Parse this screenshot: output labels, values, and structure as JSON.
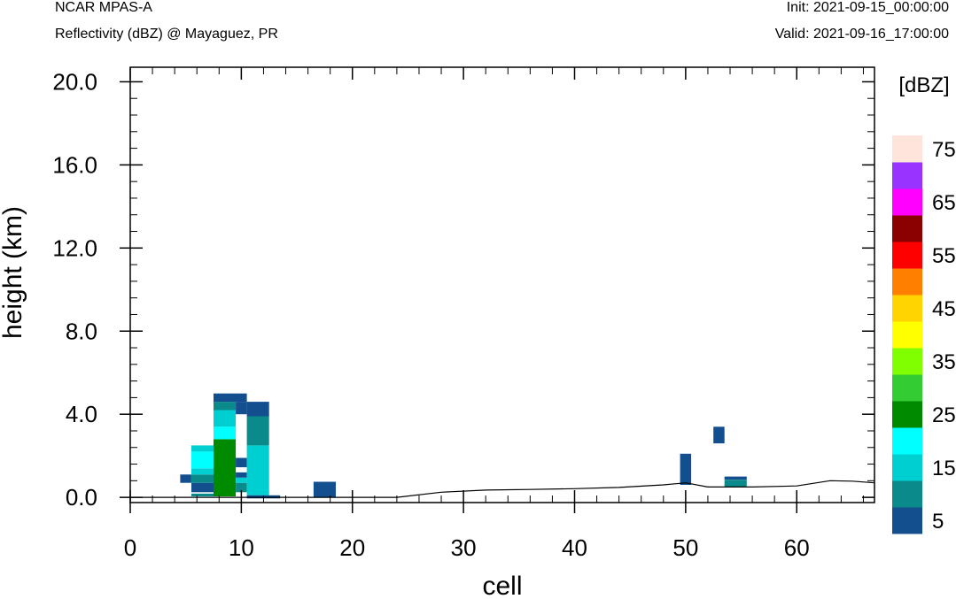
{
  "header": {
    "model": "NCAR MPAS-A",
    "subtitle": "Reflectivity (dBZ) @ Mayaguez, PR",
    "init": "Init: 2021-09-15_00:00:00",
    "valid": "Valid: 2021-09-16_17:00:00"
  },
  "chart_data": {
    "type": "heatmap",
    "xlabel": "cell",
    "ylabel": "height (km)",
    "xlim": [
      0,
      67
    ],
    "ylim": [
      -0.25,
      20.7
    ],
    "xticks": [
      0,
      10,
      20,
      30,
      40,
      50,
      60
    ],
    "xtick_labels": [
      "0",
      "10",
      "20",
      "30",
      "40",
      "50",
      "60"
    ],
    "yticks": [
      0,
      4,
      8,
      12,
      16,
      20
    ],
    "ytick_labels": [
      "0.0",
      "4.0",
      "8.0",
      "12.0",
      "16.0",
      "20.0"
    ],
    "colorbar": {
      "title": "[dBZ]",
      "levels": [
        5,
        10,
        15,
        20,
        25,
        30,
        35,
        40,
        45,
        50,
        55,
        60,
        65,
        70,
        75
      ],
      "labels": [
        "5",
        "15",
        "25",
        "35",
        "45",
        "55",
        "65",
        "75"
      ],
      "colors": [
        "#134f8f",
        "#0a8a8a",
        "#00cfd1",
        "#00ffff",
        "#008a00",
        "#33cc33",
        "#80ff00",
        "#ffff00",
        "#ffd400",
        "#ff8000",
        "#ff0000",
        "#8b0000",
        "#ff00ff",
        "#9933ff",
        "#ffe4dc"
      ]
    },
    "cells": [
      {
        "x": [
          4.5,
          5.5
        ],
        "y": [
          0.7,
          1.1
        ],
        "dbz": 5
      },
      {
        "x": [
          5.5,
          7.5
        ],
        "y": [
          0.25,
          0.7
        ],
        "dbz": 5
      },
      {
        "x": [
          5.5,
          7.5
        ],
        "y": [
          0.7,
          1.1
        ],
        "dbz": 10
      },
      {
        "x": [
          5.5,
          7.5
        ],
        "y": [
          1.1,
          1.4
        ],
        "dbz": 15
      },
      {
        "x": [
          5.5,
          7.5
        ],
        "y": [
          1.4,
          2.2
        ],
        "dbz": 20
      },
      {
        "x": [
          5.5,
          7.5
        ],
        "y": [
          2.2,
          2.5
        ],
        "dbz": 15
      },
      {
        "x": [
          5.5,
          7.5
        ],
        "y": [
          0.05,
          0.18
        ],
        "dbz": 10
      },
      {
        "x": [
          7.5,
          9.5
        ],
        "y": [
          0.05,
          2.8
        ],
        "dbz": 25
      },
      {
        "x": [
          7.5,
          9.5
        ],
        "y": [
          2.8,
          3.4
        ],
        "dbz": 20
      },
      {
        "x": [
          7.5,
          9.5
        ],
        "y": [
          3.4,
          4.2
        ],
        "dbz": 15
      },
      {
        "x": [
          7.5,
          9.5
        ],
        "y": [
          4.2,
          4.6
        ],
        "dbz": 10
      },
      {
        "x": [
          7.5,
          10.5
        ],
        "y": [
          4.6,
          5.0
        ],
        "dbz": 5
      },
      {
        "x": [
          9.5,
          10.5
        ],
        "y": [
          0.25,
          0.7
        ],
        "dbz": 10
      },
      {
        "x": [
          9.5,
          10.5
        ],
        "y": [
          0.7,
          0.95
        ],
        "dbz": 15
      },
      {
        "x": [
          9.5,
          10.5
        ],
        "y": [
          0.95,
          1.2
        ],
        "dbz": 5
      },
      {
        "x": [
          9.5,
          10.5
        ],
        "y": [
          1.45,
          1.9
        ],
        "dbz": 5
      },
      {
        "x": [
          9.5,
          10.5
        ],
        "y": [
          4.0,
          4.6
        ],
        "dbz": 5
      },
      {
        "x": [
          10.5,
          12.5
        ],
        "y": [
          0.1,
          2.5
        ],
        "dbz": 15
      },
      {
        "x": [
          10.5,
          12.5
        ],
        "y": [
          2.5,
          3.9
        ],
        "dbz": 10
      },
      {
        "x": [
          10.5,
          12.5
        ],
        "y": [
          3.9,
          4.6
        ],
        "dbz": 5
      },
      {
        "x": [
          10.5,
          13.5
        ],
        "y": [
          -0.05,
          0.1
        ],
        "dbz": 5
      },
      {
        "x": [
          16.5,
          18.5
        ],
        "y": [
          0.0,
          0.75
        ],
        "dbz": 5
      },
      {
        "x": [
          49.5,
          50.5
        ],
        "y": [
          0.6,
          2.1
        ],
        "dbz": 5
      },
      {
        "x": [
          52.5,
          53.5
        ],
        "y": [
          2.6,
          3.4
        ],
        "dbz": 5
      },
      {
        "x": [
          53.5,
          55.5
        ],
        "y": [
          0.85,
          1.0
        ],
        "dbz": 5
      },
      {
        "x": [
          53.5,
          55.5
        ],
        "y": [
          0.5,
          0.85
        ],
        "dbz": 10
      }
    ],
    "terrain": {
      "x": [
        0,
        4,
        12,
        20,
        24,
        28,
        32,
        36,
        40,
        44,
        48,
        50,
        52,
        56,
        60,
        63,
        65,
        67
      ],
      "y": [
        0.0,
        0.0,
        0.0,
        0.0,
        0.0,
        0.25,
        0.35,
        0.38,
        0.42,
        0.48,
        0.6,
        0.7,
        0.5,
        0.5,
        0.55,
        0.8,
        0.78,
        0.7
      ]
    }
  }
}
